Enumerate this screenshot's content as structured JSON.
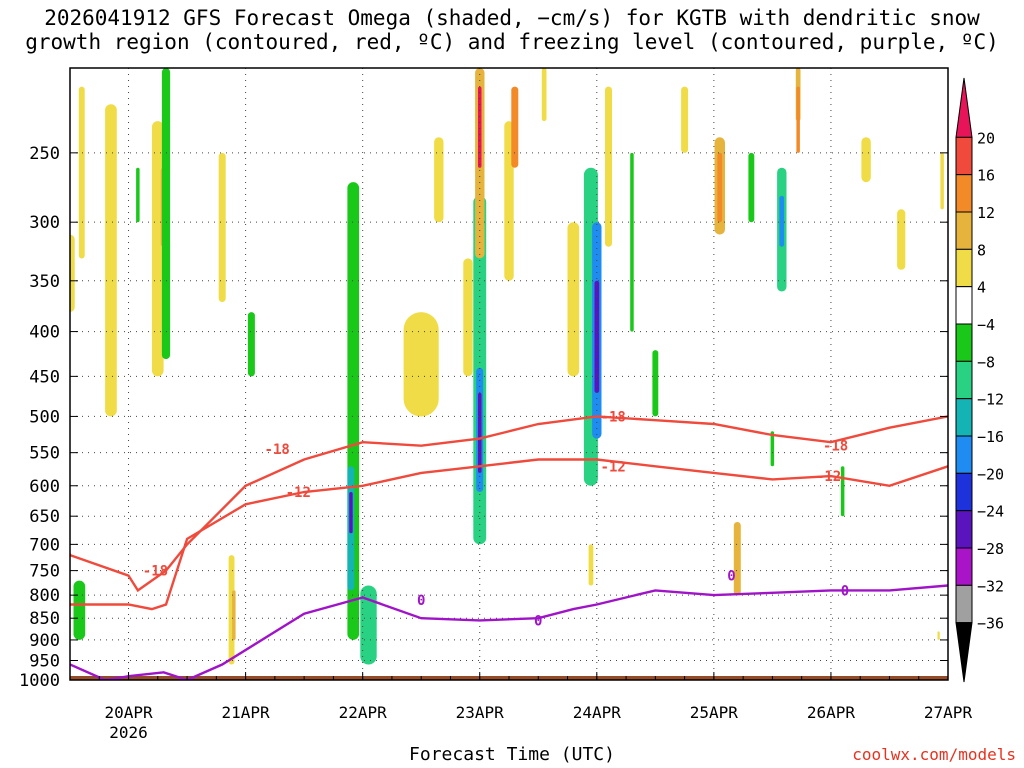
{
  "title": {
    "line1": "2026041912 GFS Forecast Omega (shaded, −cm/s) for KGTB with dendritic snow",
    "line2": "growth region (contoured, red, ºC) and freezing level (contoured, purple, ºC)"
  },
  "xlabel": "Forecast Time (UTC)",
  "credit": "coolwx.com/models",
  "chart_data": {
    "type": "time-height cross section",
    "title": "2026041912 GFS Forecast Omega (shaded, −cm/s) for KGTB with dendritic snow growth region (contoured, red, ºC) and freezing level (contoured, purple, ºC)",
    "xlabel": "Forecast Time (UTC)",
    "ylabel": "Pressure (hPa)",
    "x_range": [
      "2026-04-19 12Z",
      "2026-04-27 00Z"
    ],
    "x_ticks": [
      {
        "label": "20APR",
        "sublabel": "2026",
        "day": 1
      },
      {
        "label": "21APR",
        "day": 2
      },
      {
        "label": "22APR",
        "day": 3
      },
      {
        "label": "23APR",
        "day": 4
      },
      {
        "label": "24APR",
        "day": 5
      },
      {
        "label": "25APR",
        "day": 6
      },
      {
        "label": "26APR",
        "day": 7
      },
      {
        "label": "27APR",
        "day": 8
      }
    ],
    "y_range": [
      1000,
      200
    ],
    "y_ticks": [
      250,
      300,
      350,
      400,
      450,
      500,
      550,
      600,
      650,
      700,
      750,
      800,
      850,
      900,
      950,
      1000
    ],
    "colorbar": {
      "labels": [
        "20",
        "16",
        "12",
        "8",
        "4",
        "−4",
        "−8",
        "−12",
        "−16",
        "−20",
        "−24",
        "−28",
        "−32",
        "−36"
      ],
      "colors": [
        "#e8145a",
        "#f04a3c",
        "#f28a28",
        "#e6b43c",
        "#f0dc46",
        "#ffffff",
        "#19c819",
        "#28d282",
        "#14b4b4",
        "#1e8cf0",
        "#1e32dc",
        "#5a14be",
        "#aa14c8",
        "#a0a0a0",
        "#000000"
      ]
    },
    "omega_blobs": [
      {
        "day": 0.08,
        "p": 1000,
        "ptop": 560,
        "w": 0.05,
        "v": 6
      },
      {
        "day": 0.1,
        "p": 540,
        "ptop": 400,
        "w": 0.05,
        "v": -16
      },
      {
        "day": 0.1,
        "p": 480,
        "ptop": 420,
        "w": 0.02,
        "v": -28
      },
      {
        "day": 0.1,
        "p": 640,
        "ptop": 420,
        "w": 0.1,
        "v": -8
      },
      {
        "day": 0.15,
        "p": 230,
        "ptop": 200,
        "w": 0.03,
        "v": 5
      },
      {
        "day": 0.28,
        "p": 850,
        "ptop": 220,
        "w": 0.08,
        "v": -6
      },
      {
        "day": 0.42,
        "p": 960,
        "ptop": 770,
        "w": 0.06,
        "v": -6
      },
      {
        "day": 0.58,
        "p": 900,
        "ptop": 770,
        "w": 0.1,
        "v": -6
      },
      {
        "day": 0.5,
        "p": 380,
        "ptop": 310,
        "w": 0.08,
        "v": 5
      },
      {
        "day": 0.6,
        "p": 330,
        "ptop": 210,
        "w": 0.05,
        "v": 5
      },
      {
        "day": 0.85,
        "p": 500,
        "ptop": 220,
        "w": 0.1,
        "v": 5
      },
      {
        "day": 1.08,
        "p": 300,
        "ptop": 260,
        "w": 0.03,
        "v": -6
      },
      {
        "day": 1.25,
        "p": 450,
        "ptop": 230,
        "w": 0.1,
        "v": 6
      },
      {
        "day": 1.3,
        "p": 320,
        "ptop": 260,
        "w": 0.05,
        "v": 9
      },
      {
        "day": 1.32,
        "p": 430,
        "ptop": 200,
        "w": 0.07,
        "v": -6
      },
      {
        "day": 1.8,
        "p": 370,
        "ptop": 250,
        "w": 0.06,
        "v": 5
      },
      {
        "day": 2.05,
        "p": 450,
        "ptop": 380,
        "w": 0.06,
        "v": -5
      },
      {
        "day": 1.88,
        "p": 960,
        "ptop": 720,
        "w": 0.05,
        "v": 6
      },
      {
        "day": 1.9,
        "p": 900,
        "ptop": 790,
        "w": 0.03,
        "v": 10
      },
      {
        "day": 2.92,
        "p": 900,
        "ptop": 270,
        "w": 0.1,
        "v": -7
      },
      {
        "day": 2.9,
        "p": 790,
        "ptop": 570,
        "w": 0.06,
        "v": -14
      },
      {
        "day": 2.9,
        "p": 680,
        "ptop": 610,
        "w": 0.03,
        "v": -24
      },
      {
        "day": 3.05,
        "p": 960,
        "ptop": 780,
        "w": 0.14,
        "v": -9
      },
      {
        "day": 3.5,
        "p": 500,
        "ptop": 380,
        "w": 0.3,
        "v": 5
      },
      {
        "day": 3.65,
        "p": 300,
        "ptop": 240,
        "w": 0.08,
        "v": 5
      },
      {
        "day": 3.9,
        "p": 450,
        "ptop": 330,
        "w": 0.08,
        "v": 5
      },
      {
        "day": 4.0,
        "p": 700,
        "ptop": 280,
        "w": 0.11,
        "v": -9
      },
      {
        "day": 4.0,
        "p": 610,
        "ptop": 440,
        "w": 0.06,
        "v": -17
      },
      {
        "day": 4.0,
        "p": 580,
        "ptop": 470,
        "w": 0.03,
        "v": -26
      },
      {
        "day": 4.0,
        "p": 330,
        "ptop": 200,
        "w": 0.08,
        "v": 10
      },
      {
        "day": 4.0,
        "p": 260,
        "ptop": 210,
        "w": 0.03,
        "v": 20
      },
      {
        "day": 4.25,
        "p": 350,
        "ptop": 230,
        "w": 0.08,
        "v": 5
      },
      {
        "day": 4.3,
        "p": 260,
        "ptop": 210,
        "w": 0.06,
        "v": 12
      },
      {
        "day": 4.55,
        "p": 230,
        "ptop": 200,
        "w": 0.04,
        "v": 5
      },
      {
        "day": 4.8,
        "p": 450,
        "ptop": 300,
        "w": 0.1,
        "v": 5
      },
      {
        "day": 4.95,
        "p": 600,
        "ptop": 260,
        "w": 0.12,
        "v": -10
      },
      {
        "day": 5.0,
        "p": 530,
        "ptop": 300,
        "w": 0.08,
        "v": -18
      },
      {
        "day": 5.0,
        "p": 470,
        "ptop": 350,
        "w": 0.04,
        "v": -24
      },
      {
        "day": 4.95,
        "p": 780,
        "ptop": 700,
        "w": 0.04,
        "v": 7
      },
      {
        "day": 5.1,
        "p": 320,
        "ptop": 210,
        "w": 0.06,
        "v": 5
      },
      {
        "day": 5.3,
        "p": 400,
        "ptop": 250,
        "w": 0.03,
        "v": -6
      },
      {
        "day": 5.5,
        "p": 500,
        "ptop": 420,
        "w": 0.05,
        "v": -7
      },
      {
        "day": 5.75,
        "p": 250,
        "ptop": 210,
        "w": 0.06,
        "v": 6
      },
      {
        "day": 6.05,
        "p": 310,
        "ptop": 240,
        "w": 0.09,
        "v": 8
      },
      {
        "day": 6.05,
        "p": 300,
        "ptop": 250,
        "w": 0.04,
        "v": 12
      },
      {
        "day": 6.2,
        "p": 800,
        "ptop": 660,
        "w": 0.06,
        "v": 8
      },
      {
        "day": 6.32,
        "p": 300,
        "ptop": 250,
        "w": 0.05,
        "v": -6
      },
      {
        "day": 6.58,
        "p": 360,
        "ptop": 260,
        "w": 0.08,
        "v": -10
      },
      {
        "day": 6.58,
        "p": 320,
        "ptop": 280,
        "w": 0.04,
        "v": -17
      },
      {
        "day": 6.72,
        "p": 230,
        "ptop": 200,
        "w": 0.04,
        "v": 10
      },
      {
        "day": 6.72,
        "p": 250,
        "ptop": 210,
        "w": 0.03,
        "v": 14
      },
      {
        "day": 6.5,
        "p": 570,
        "ptop": 520,
        "w": 0.03,
        "v": -6
      },
      {
        "day": 7.1,
        "p": 650,
        "ptop": 570,
        "w": 0.03,
        "v": -6
      },
      {
        "day": 7.3,
        "p": 270,
        "ptop": 240,
        "w": 0.08,
        "v": 5
      },
      {
        "day": 7.6,
        "p": 340,
        "ptop": 290,
        "w": 0.07,
        "v": 5
      },
      {
        "day": 7.95,
        "p": 290,
        "ptop": 250,
        "w": 0.03,
        "v": 5
      },
      {
        "day": 7.92,
        "p": 900,
        "ptop": 880,
        "w": 0.02,
        "v": 5
      }
    ],
    "dgz_contours": [
      {
        "label": "-18",
        "points": [
          [
            0.0,
            490
          ],
          [
            0.15,
            520
          ],
          [
            0.3,
            590
          ],
          [
            0.5,
            720
          ],
          [
            1.0,
            760
          ],
          [
            1.08,
            790
          ],
          [
            1.32,
            750
          ],
          [
            1.5,
            700
          ],
          [
            2.0,
            600
          ],
          [
            2.5,
            560
          ],
          [
            3.0,
            535
          ],
          [
            3.5,
            540
          ],
          [
            4.0,
            530
          ],
          [
            4.5,
            510
          ],
          [
            5.0,
            500
          ],
          [
            5.5,
            505
          ],
          [
            6.0,
            510
          ],
          [
            6.5,
            525
          ],
          [
            7.0,
            535
          ],
          [
            7.5,
            515
          ],
          [
            8.0,
            500
          ]
        ]
      },
      {
        "label": "-12",
        "points": [
          [
            0.0,
            560
          ],
          [
            0.15,
            620
          ],
          [
            0.25,
            800
          ],
          [
            0.5,
            820
          ],
          [
            1.0,
            820
          ],
          [
            1.2,
            830
          ],
          [
            1.32,
            820
          ],
          [
            1.5,
            690
          ],
          [
            2.0,
            630
          ],
          [
            2.5,
            610
          ],
          [
            3.0,
            600
          ],
          [
            3.5,
            580
          ],
          [
            4.0,
            570
          ],
          [
            4.5,
            560
          ],
          [
            5.0,
            560
          ],
          [
            5.5,
            570
          ],
          [
            6.0,
            580
          ],
          [
            6.5,
            590
          ],
          [
            7.0,
            585
          ],
          [
            7.5,
            600
          ],
          [
            8.0,
            570
          ]
        ]
      },
      {
        "label": "0",
        "points": [
          [
            0.0,
            970
          ],
          [
            0.5,
            960
          ],
          [
            0.8,
            1000
          ],
          [
            1.0,
            990
          ],
          [
            1.3,
            980
          ],
          [
            1.5,
            1000
          ],
          [
            1.8,
            960
          ],
          [
            2.5,
            840
          ],
          [
            3.0,
            805
          ],
          [
            3.5,
            850
          ],
          [
            4.0,
            855
          ],
          [
            4.5,
            850
          ],
          [
            4.8,
            830
          ],
          [
            5.0,
            820
          ],
          [
            5.5,
            790
          ],
          [
            6.0,
            800
          ],
          [
            6.5,
            795
          ],
          [
            7.0,
            790
          ],
          [
            7.5,
            790
          ],
          [
            8.0,
            780
          ]
        ]
      }
    ],
    "contour_labels": [
      {
        "text": "-18",
        "day": 1.23,
        "p": 750,
        "color": "#f04a3c"
      },
      {
        "text": "-18",
        "day": 2.27,
        "p": 545,
        "color": "#f04a3c"
      },
      {
        "text": "-18",
        "day": 5.14,
        "p": 500,
        "color": "#f04a3c"
      },
      {
        "text": "-18",
        "day": 7.04,
        "p": 540,
        "color": "#f04a3c"
      },
      {
        "text": "-12",
        "day": 0.27,
        "p": 790,
        "color": "#f04a3c"
      },
      {
        "text": "-12",
        "day": 2.45,
        "p": 610,
        "color": "#f04a3c"
      },
      {
        "text": "-12",
        "day": 5.14,
        "p": 570,
        "color": "#f04a3c"
      },
      {
        "text": "-12",
        "day": 6.98,
        "p": 585,
        "color": "#f04a3c"
      },
      {
        "text": "0",
        "day": 3.5,
        "p": 810,
        "color": "#a014c8"
      },
      {
        "text": "0",
        "day": 4.5,
        "p": 855,
        "color": "#a014c8"
      },
      {
        "text": "0",
        "day": 6.15,
        "p": 760,
        "color": "#a014c8"
      },
      {
        "text": "0",
        "day": 7.12,
        "p": 790,
        "color": "#a014c8"
      }
    ],
    "terrain_color": "#964b28"
  }
}
